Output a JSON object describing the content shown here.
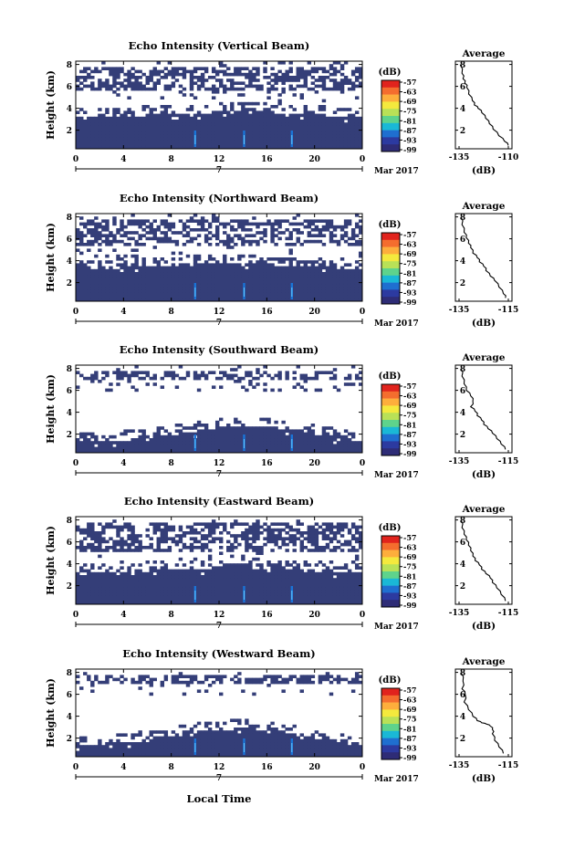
{
  "x_axis_label": "Local Time",
  "date_label": "Mar 2017",
  "day_label": "7",
  "colorbar_unit": "(dB)",
  "colorbar_ticks": [
    "-57",
    "-63",
    "-69",
    "-75",
    "-81",
    "-87",
    "-93",
    "-99"
  ],
  "colorbar_colors": [
    "#e1231d",
    "#f46d2e",
    "#fdae3c",
    "#f4e93d",
    "#b9e157",
    "#5ed38c",
    "#1ab8d6",
    "#1f6fd0",
    "#2c3aa0",
    "#2e2c76"
  ],
  "echo_colors": {
    "background": "#343e78",
    "core": "#1a74d8",
    "hot": "#66c8ff"
  },
  "chart_data": [
    {
      "type": "heatmap",
      "title": "Echo Intensity (Vertical Beam)",
      "ylabel": "Height (km)",
      "x_ticks": [
        "0",
        "4",
        "8",
        "12",
        "16",
        "20",
        "0"
      ],
      "y_ticks": [
        "2",
        "4",
        "6",
        "8"
      ],
      "xlim": [
        0,
        24
      ],
      "ylim": [
        0.3,
        8.3
      ],
      "low_layer_top_km": [
        3.2,
        3.3,
        3.4,
        3.5,
        3.6,
        3.7,
        3.8,
        3.8,
        3.8,
        3.7,
        3.6,
        3.4,
        3.3
      ],
      "upper_cloud_km": [
        5.7,
        8.0
      ],
      "average_profile": {
        "title": "Average",
        "xlabel": "(dB)",
        "x_ticks": [
          "-135",
          "-110"
        ],
        "y_ticks": [
          "2",
          "4",
          "6",
          "8"
        ],
        "xlim": [
          -138,
          -108
        ],
        "ylim": [
          0.3,
          8.3
        ],
        "x": [
          -135.5,
          -134.5,
          -134,
          -133,
          -132,
          -131,
          -129,
          -128,
          -126,
          -124,
          -122,
          -120,
          -118,
          -115,
          -112,
          -110
        ],
        "y": [
          8.0,
          7.2,
          6.7,
          6.3,
          5.9,
          5.3,
          4.7,
          4.3,
          4.0,
          3.6,
          3.1,
          2.6,
          2.1,
          1.5,
          1.0,
          0.6
        ]
      }
    },
    {
      "type": "heatmap",
      "title": "Echo Intensity (Northward Beam)",
      "ylabel": "Height (km)",
      "x_ticks": [
        "0",
        "4",
        "8",
        "12",
        "16",
        "20",
        "0"
      ],
      "y_ticks": [
        "2",
        "4",
        "6",
        "8"
      ],
      "xlim": [
        0,
        24
      ],
      "ylim": [
        0.3,
        8.3
      ],
      "low_layer_top_km": [
        3.3,
        3.4,
        3.5,
        3.6,
        3.7,
        3.8,
        3.8,
        3.8,
        3.8,
        3.7,
        3.6,
        3.5,
        3.4
      ],
      "upper_cloud_km": [
        5.4,
        8.0
      ],
      "average_profile": {
        "title": "Average",
        "xlabel": "(dB)",
        "x_ticks": [
          "-135",
          "-115"
        ],
        "y_ticks": [
          "2",
          "4",
          "6",
          "8"
        ],
        "xlim": [
          -138,
          -112
        ],
        "ylim": [
          0.3,
          8.3
        ],
        "x": [
          -135.5,
          -135,
          -134,
          -133,
          -132,
          -131,
          -130,
          -128,
          -127,
          -125,
          -124,
          -122,
          -120,
          -118,
          -116,
          -115
        ],
        "y": [
          8.0,
          7.3,
          6.6,
          6.1,
          5.6,
          5.2,
          4.7,
          4.3,
          3.9,
          3.5,
          3.1,
          2.6,
          2.2,
          1.6,
          1.0,
          0.6
        ]
      }
    },
    {
      "type": "heatmap",
      "title": "Echo Intensity (Southward Beam)",
      "ylabel": "Height (km)",
      "x_ticks": [
        "0",
        "4",
        "8",
        "12",
        "16",
        "20",
        "0"
      ],
      "y_ticks": [
        "2",
        "4",
        "6",
        "8"
      ],
      "xlim": [
        0,
        24
      ],
      "ylim": [
        0.3,
        8.3
      ],
      "low_layer_top_km": [
        1.4,
        1.5,
        1.6,
        1.8,
        2.1,
        2.4,
        2.7,
        2.8,
        2.7,
        2.5,
        2.2,
        1.8,
        1.5
      ],
      "upper_cloud_km": [
        7.0,
        8.0
      ],
      "average_profile": {
        "title": "Average",
        "xlabel": "(dB)",
        "x_ticks": [
          "-135",
          "-115"
        ],
        "y_ticks": [
          "2",
          "4",
          "6",
          "8"
        ],
        "xlim": [
          -138,
          -112
        ],
        "ylim": [
          0.3,
          8.3
        ],
        "x": [
          -135.5,
          -135,
          -134,
          -133,
          -131,
          -130,
          -131,
          -129,
          -128,
          -126,
          -125,
          -123,
          -121,
          -119,
          -117,
          -115
        ],
        "y": [
          8.0,
          7.3,
          6.6,
          6.0,
          5.5,
          5.0,
          4.5,
          4.1,
          3.7,
          3.3,
          2.9,
          2.5,
          2.1,
          1.6,
          1.1,
          0.6
        ]
      }
    },
    {
      "type": "heatmap",
      "title": "Echo Intensity (Eastward Beam)",
      "ylabel": "Height (km)",
      "x_ticks": [
        "0",
        "4",
        "8",
        "12",
        "16",
        "20",
        "0"
      ],
      "y_ticks": [
        "2",
        "4",
        "6",
        "8"
      ],
      "xlim": [
        0,
        24
      ],
      "ylim": [
        0.3,
        8.3
      ],
      "low_layer_top_km": [
        3.2,
        3.3,
        3.4,
        3.5,
        3.6,
        3.7,
        3.8,
        3.8,
        3.7,
        3.6,
        3.5,
        3.4,
        3.3
      ],
      "upper_cloud_km": [
        5.3,
        8.0
      ],
      "average_profile": {
        "title": "Average",
        "xlabel": "(dB)",
        "x_ticks": [
          "-135",
          "-115"
        ],
        "y_ticks": [
          "2",
          "4",
          "6",
          "8"
        ],
        "xlim": [
          -138,
          -112
        ],
        "ylim": [
          0.3,
          8.3
        ],
        "x": [
          -135.5,
          -135,
          -134,
          -133,
          -132,
          -131,
          -130,
          -129,
          -127,
          -126,
          -124,
          -122,
          -121,
          -119,
          -117,
          -115
        ],
        "y": [
          8.0,
          7.3,
          6.7,
          6.2,
          5.7,
          5.2,
          4.7,
          4.3,
          3.9,
          3.5,
          3.1,
          2.7,
          2.3,
          1.8,
          1.2,
          0.6
        ]
      }
    },
    {
      "type": "heatmap",
      "title": "Echo Intensity (Westward Beam)",
      "ylabel": "Height (km)",
      "x_ticks": [
        "0",
        "4",
        "8",
        "12",
        "16",
        "20",
        "0"
      ],
      "y_ticks": [
        "2",
        "4",
        "6",
        "8"
      ],
      "xlim": [
        0,
        24
      ],
      "ylim": [
        0.3,
        8.3
      ],
      "low_layer_top_km": [
        1.5,
        1.6,
        1.7,
        2.0,
        2.4,
        2.7,
        2.9,
        3.0,
        2.9,
        2.6,
        2.2,
        1.8,
        1.5
      ],
      "upper_cloud_km": [
        7.0,
        8.0
      ],
      "average_profile": {
        "title": "Average",
        "xlabel": "(dB)",
        "x_ticks": [
          "-135",
          "-115"
        ],
        "y_ticks": [
          "2",
          "4",
          "6",
          "8"
        ],
        "xlim": [
          -138,
          -112
        ],
        "ylim": [
          0.3,
          8.3
        ],
        "x": [
          -135.5,
          -134.5,
          -135,
          -133.5,
          -134,
          -132,
          -130,
          -128,
          -126,
          -124,
          -122,
          -121,
          -121,
          -120,
          -118,
          -116
        ],
        "y": [
          8.0,
          7.2,
          6.5,
          6.0,
          5.3,
          4.6,
          4.0,
          3.6,
          3.4,
          3.3,
          3.1,
          2.8,
          2.4,
          1.8,
          1.2,
          0.6
        ]
      }
    }
  ]
}
